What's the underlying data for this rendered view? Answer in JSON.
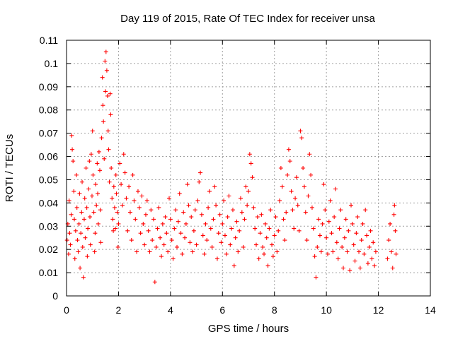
{
  "chart_data": {
    "type": "scatter",
    "title": "Day 119 of 2015, Rate Of TEC Index for receiver unsa",
    "xlabel": "GPS time / hours",
    "ylabel": "ROTI / TECUs",
    "xlim": [
      0,
      14
    ],
    "ylim": [
      0,
      0.11
    ],
    "xticks": [
      "0",
      "2",
      "4",
      "6",
      "8",
      "10",
      "12",
      "14"
    ],
    "xtick_values": [
      0,
      2,
      4,
      6,
      8,
      10,
      12,
      14
    ],
    "yticks": [
      "0",
      "0.01",
      "0.02",
      "0.03",
      "0.04",
      "0.05",
      "0.06",
      "0.07",
      "0.08",
      "0.09",
      "0.1",
      "0.11"
    ],
    "ytick_values": [
      0,
      0.01,
      0.02,
      0.03,
      0.04,
      0.05,
      0.06,
      0.07,
      0.08,
      0.09,
      0.1,
      0.11
    ],
    "grid": true,
    "marker": "+",
    "color": "#ff0000",
    "series": [
      {
        "points": [
          [
            0.02,
            0.024
          ],
          [
            0.05,
            0.031
          ],
          [
            0.08,
            0.018
          ],
          [
            0.1,
            0.041
          ],
          [
            0.12,
            0.027
          ],
          [
            0.15,
            0.022
          ],
          [
            0.18,
            0.035
          ],
          [
            0.2,
            0.069
          ],
          [
            0.22,
            0.063
          ],
          [
            0.25,
            0.058
          ],
          [
            0.28,
            0.045
          ],
          [
            0.3,
            0.033
          ],
          [
            0.32,
            0.016
          ],
          [
            0.35,
            0.028
          ],
          [
            0.38,
            0.052
          ],
          [
            0.4,
            0.038
          ],
          [
            0.42,
            0.024
          ],
          [
            0.45,
            0.019
          ],
          [
            0.48,
            0.031
          ],
          [
            0.5,
            0.044
          ],
          [
            0.52,
            0.012
          ],
          [
            0.55,
            0.027
          ],
          [
            0.58,
            0.036
          ],
          [
            0.6,
            0.049
          ],
          [
            0.62,
            0.021
          ],
          [
            0.65,
            0.008
          ],
          [
            0.68,
            0.033
          ],
          [
            0.7,
            0.042
          ],
          [
            0.72,
            0.025
          ],
          [
            0.75,
            0.055
          ],
          [
            0.78,
            0.038
          ],
          [
            0.8,
            0.017
          ],
          [
            0.82,
            0.029
          ],
          [
            0.85,
            0.046
          ],
          [
            0.88,
            0.058
          ],
          [
            0.9,
            0.034
          ],
          [
            0.92,
            0.022
          ],
          [
            0.95,
            0.061
          ],
          [
            0.98,
            0.043
          ],
          [
            1.0,
            0.071
          ],
          [
            1.02,
            0.052
          ],
          [
            1.05,
            0.036
          ],
          [
            1.08,
            0.019
          ],
          [
            1.1,
            0.027
          ],
          [
            1.12,
            0.048
          ],
          [
            1.15,
            0.039
          ],
          [
            1.18,
            0.057
          ],
          [
            1.2,
            0.044
          ],
          [
            1.22,
            0.031
          ],
          [
            1.25,
            0.062
          ],
          [
            1.28,
            0.054
          ],
          [
            1.3,
            0.037
          ],
          [
            1.32,
            0.023
          ],
          [
            1.35,
            0.068
          ],
          [
            1.38,
            0.094
          ],
          [
            1.4,
            0.082
          ],
          [
            1.42,
            0.075
          ],
          [
            1.45,
            0.059
          ],
          [
            1.48,
            0.101
          ],
          [
            1.5,
            0.088
          ],
          [
            1.52,
            0.105
          ],
          [
            1.55,
            0.097
          ],
          [
            1.58,
            0.086
          ],
          [
            1.6,
            0.071
          ],
          [
            1.62,
            0.063
          ],
          [
            1.65,
            0.049
          ],
          [
            1.68,
            0.087
          ],
          [
            1.7,
            0.078
          ],
          [
            1.72,
            0.055
          ],
          [
            1.75,
            0.042
          ],
          [
            1.78,
            0.033
          ],
          [
            1.8,
            0.028
          ],
          [
            1.82,
            0.047
          ],
          [
            1.85,
            0.038
          ],
          [
            1.88,
            0.029
          ],
          [
            1.9,
            0.052
          ],
          [
            1.92,
            0.044
          ],
          [
            1.95,
            0.036
          ],
          [
            1.98,
            0.021
          ],
          [
            2.0,
            0.031
          ],
          [
            2.05,
            0.057
          ],
          [
            2.1,
            0.048
          ],
          [
            2.15,
            0.039
          ],
          [
            2.2,
            0.061
          ],
          [
            2.25,
            0.053
          ],
          [
            2.3,
            0.042
          ],
          [
            2.35,
            0.028
          ],
          [
            2.4,
            0.047
          ],
          [
            2.45,
            0.036
          ],
          [
            2.5,
            0.024
          ],
          [
            2.55,
            0.052
          ],
          [
            2.6,
            0.041
          ],
          [
            2.65,
            0.033
          ],
          [
            2.7,
            0.019
          ],
          [
            2.75,
            0.045
          ],
          [
            2.8,
            0.038
          ],
          [
            2.85,
            0.027
          ],
          [
            2.9,
            0.043
          ],
          [
            2.95,
            0.031
          ],
          [
            3.0,
            0.022
          ],
          [
            3.05,
            0.035
          ],
          [
            3.1,
            0.041
          ],
          [
            3.15,
            0.028
          ],
          [
            3.2,
            0.019
          ],
          [
            3.25,
            0.037
          ],
          [
            3.3,
            0.024
          ],
          [
            3.35,
            0.033
          ],
          [
            3.4,
            0.006
          ],
          [
            3.45,
            0.021
          ],
          [
            3.5,
            0.029
          ],
          [
            3.55,
            0.038
          ],
          [
            3.6,
            0.025
          ],
          [
            3.65,
            0.017
          ],
          [
            3.7,
            0.031
          ],
          [
            3.75,
            0.022
          ],
          [
            3.8,
            0.034
          ],
          [
            3.85,
            0.027
          ],
          [
            3.9,
            0.019
          ],
          [
            3.95,
            0.042
          ],
          [
            4.0,
            0.033
          ],
          [
            4.05,
            0.024
          ],
          [
            4.1,
            0.016
          ],
          [
            4.15,
            0.029
          ],
          [
            4.2,
            0.037
          ],
          [
            4.25,
            0.021
          ],
          [
            4.3,
            0.032
          ],
          [
            4.35,
            0.044
          ],
          [
            4.4,
            0.027
          ],
          [
            4.45,
            0.018
          ],
          [
            4.5,
            0.036
          ],
          [
            4.55,
            0.025
          ],
          [
            4.6,
            0.031
          ],
          [
            4.65,
            0.048
          ],
          [
            4.7,
            0.039
          ],
          [
            4.75,
            0.023
          ],
          [
            4.8,
            0.034
          ],
          [
            4.85,
            0.019
          ],
          [
            4.9,
            0.028
          ],
          [
            4.95,
            0.037
          ],
          [
            5.0,
            0.022
          ],
          [
            5.05,
            0.041
          ],
          [
            5.1,
            0.049
          ],
          [
            5.15,
            0.053
          ],
          [
            5.2,
            0.035
          ],
          [
            5.25,
            0.026
          ],
          [
            5.3,
            0.018
          ],
          [
            5.35,
            0.031
          ],
          [
            5.4,
            0.024
          ],
          [
            5.45,
            0.038
          ],
          [
            5.5,
            0.045
          ],
          [
            5.55,
            0.029
          ],
          [
            5.6,
            0.021
          ],
          [
            5.65,
            0.033
          ],
          [
            5.7,
            0.047
          ],
          [
            5.75,
            0.039
          ],
          [
            5.8,
            0.016
          ],
          [
            5.85,
            0.027
          ],
          [
            5.9,
            0.035
          ],
          [
            5.95,
            0.023
          ],
          [
            6.0,
            0.031
          ],
          [
            6.05,
            0.041
          ],
          [
            6.1,
            0.026
          ],
          [
            6.15,
            0.018
          ],
          [
            6.2,
            0.034
          ],
          [
            6.25,
            0.043
          ],
          [
            6.3,
            0.022
          ],
          [
            6.35,
            0.029
          ],
          [
            6.4,
            0.037
          ],
          [
            6.45,
            0.013
          ],
          [
            6.5,
            0.025
          ],
          [
            6.55,
            0.032
          ],
          [
            6.6,
            0.019
          ],
          [
            6.65,
            0.028
          ],
          [
            6.7,
            0.042
          ],
          [
            6.75,
            0.036
          ],
          [
            6.8,
            0.021
          ],
          [
            6.85,
            0.033
          ],
          [
            6.9,
            0.047
          ],
          [
            6.95,
            0.039
          ],
          [
            7.0,
            0.045
          ],
          [
            7.05,
            0.061
          ],
          [
            7.1,
            0.057
          ],
          [
            7.15,
            0.051
          ],
          [
            7.2,
            0.038
          ],
          [
            7.25,
            0.029
          ],
          [
            7.3,
            0.022
          ],
          [
            7.35,
            0.034
          ],
          [
            7.4,
            0.016
          ],
          [
            7.45,
            0.027
          ],
          [
            7.5,
            0.035
          ],
          [
            7.55,
            0.021
          ],
          [
            7.6,
            0.018
          ],
          [
            7.65,
            0.031
          ],
          [
            7.7,
            0.025
          ],
          [
            7.75,
            0.013
          ],
          [
            7.8,
            0.029
          ],
          [
            7.85,
            0.037
          ],
          [
            7.9,
            0.022
          ],
          [
            7.95,
            0.017
          ],
          [
            8.0,
            0.026
          ],
          [
            8.05,
            0.034
          ],
          [
            8.1,
            0.019
          ],
          [
            8.15,
            0.028
          ],
          [
            8.2,
            0.041
          ],
          [
            8.25,
            0.055
          ],
          [
            8.3,
            0.047
          ],
          [
            8.35,
            0.033
          ],
          [
            8.4,
            0.024
          ],
          [
            8.45,
            0.036
          ],
          [
            8.5,
            0.052
          ],
          [
            8.55,
            0.063
          ],
          [
            8.6,
            0.058
          ],
          [
            8.65,
            0.045
          ],
          [
            8.7,
            0.037
          ],
          [
            8.75,
            0.029
          ],
          [
            8.8,
            0.042
          ],
          [
            8.85,
            0.051
          ],
          [
            8.9,
            0.039
          ],
          [
            8.95,
            0.028
          ],
          [
            9.0,
            0.071
          ],
          [
            9.05,
            0.068
          ],
          [
            9.1,
            0.055
          ],
          [
            9.15,
            0.047
          ],
          [
            9.2,
            0.036
          ],
          [
            9.25,
            0.024
          ],
          [
            9.3,
            0.043
          ],
          [
            9.35,
            0.061
          ],
          [
            9.4,
            0.052
          ],
          [
            9.45,
            0.038
          ],
          [
            9.5,
            0.029
          ],
          [
            9.55,
            0.017
          ],
          [
            9.6,
            0.008
          ],
          [
            9.65,
            0.021
          ],
          [
            9.7,
            0.033
          ],
          [
            9.75,
            0.026
          ],
          [
            9.8,
            0.019
          ],
          [
            9.85,
            0.031
          ],
          [
            9.9,
            0.048
          ],
          [
            9.95,
            0.037
          ],
          [
            10.0,
            0.025
          ],
          [
            10.05,
            0.018
          ],
          [
            10.1,
            0.032
          ],
          [
            10.15,
            0.041
          ],
          [
            10.2,
            0.027
          ],
          [
            10.25,
            0.019
          ],
          [
            10.3,
            0.034
          ],
          [
            10.35,
            0.046
          ],
          [
            10.4,
            0.023
          ],
          [
            10.45,
            0.016
          ],
          [
            10.5,
            0.029
          ],
          [
            10.55,
            0.037
          ],
          [
            10.6,
            0.021
          ],
          [
            10.65,
            0.012
          ],
          [
            10.7,
            0.025
          ],
          [
            10.75,
            0.033
          ],
          [
            10.8,
            0.019
          ],
          [
            10.85,
            0.028
          ],
          [
            10.9,
            0.011
          ],
          [
            10.95,
            0.039
          ],
          [
            11.0,
            0.031
          ],
          [
            11.05,
            0.022
          ],
          [
            11.1,
            0.015
          ],
          [
            11.15,
            0.027
          ],
          [
            11.2,
            0.034
          ],
          [
            11.25,
            0.019
          ],
          [
            11.3,
            0.012
          ],
          [
            11.35,
            0.024
          ],
          [
            11.4,
            0.031
          ],
          [
            11.45,
            0.018
          ],
          [
            11.5,
            0.037
          ],
          [
            11.55,
            0.026
          ],
          [
            11.6,
            0.014
          ],
          [
            11.65,
            0.021
          ],
          [
            11.7,
            0.028
          ],
          [
            11.75,
            0.016
          ],
          [
            11.8,
            0.023
          ],
          [
            11.85,
            0.013
          ],
          [
            11.9,
            0.019
          ],
          [
            12.35,
            0.016
          ],
          [
            12.4,
            0.024
          ],
          [
            12.45,
            0.031
          ],
          [
            12.5,
            0.019
          ],
          [
            12.55,
            0.012
          ],
          [
            12.6,
            0.035
          ],
          [
            12.62,
            0.039
          ],
          [
            12.65,
            0.028
          ],
          [
            12.68,
            0.018
          ]
        ]
      }
    ]
  }
}
